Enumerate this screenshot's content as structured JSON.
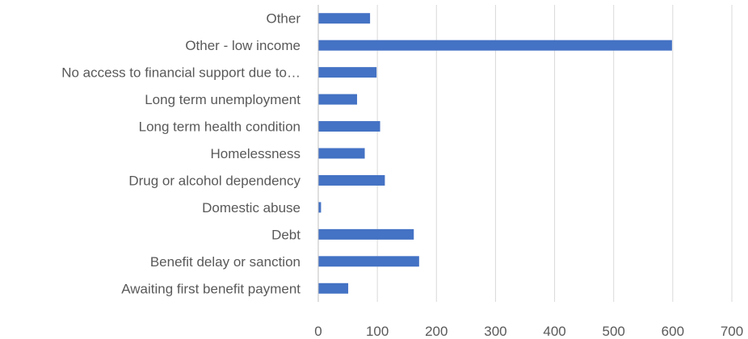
{
  "chart_data": {
    "type": "bar",
    "orientation": "horizontal",
    "categories": [
      "Awaiting first benefit payment",
      "Benefit delay or sanction",
      "Debt",
      "Domestic abuse",
      "Drug or alcohol dependency",
      "Homelessness",
      "Long term health condition",
      "Long term unemployment",
      "No access to financial support due to…",
      "Other - low income",
      "Other"
    ],
    "values": [
      50,
      170,
      161,
      4,
      112,
      78,
      104,
      65,
      98,
      598,
      87
    ],
    "xlim": [
      0,
      700
    ],
    "xticks": [
      0,
      100,
      200,
      300,
      400,
      500,
      600,
      700
    ],
    "grid": "vertical",
    "bar_color": "#4472C4",
    "grid_color": "#D9D9D9",
    "text_color": "#595959"
  }
}
